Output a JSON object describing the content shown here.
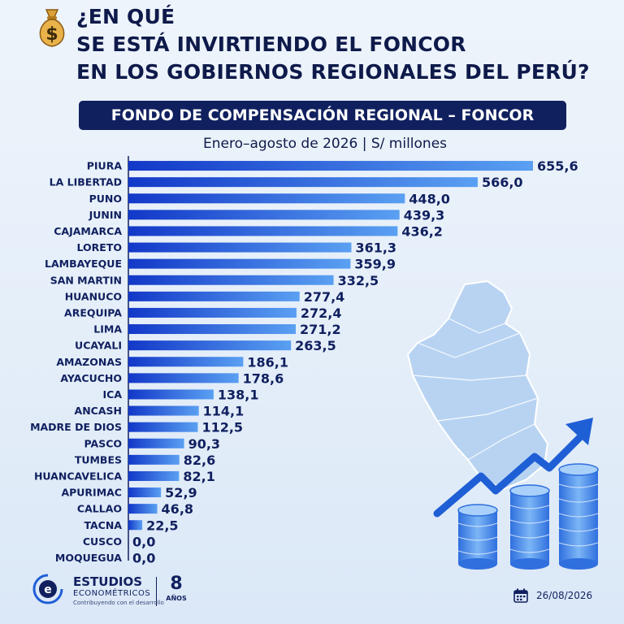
{
  "header": {
    "icon": "money-bag-icon",
    "title_lines": [
      "¿EN QUÉ",
      "SE ESTÁ INVIRTIENDO EL FONCOR",
      "EN LOS GOBIERNOS REGIONALES DEL PERÚ?"
    ]
  },
  "banner": {
    "text": "FONDO DE COMPENSACIÓN REGIONAL – FONCOR"
  },
  "colors": {
    "bar_dark": "#1238c8",
    "bar_light": "#5aa0f2",
    "navy": "#10205f"
  },
  "chart_data": {
    "type": "bar",
    "orientation": "horizontal",
    "title": "Enero–agosto de 2026 | S/ millones",
    "categories": [
      "PIURA",
      "LA LIBERTAD",
      "PUNO",
      "JUNIN",
      "CAJAMARCA",
      "LORETO",
      "LAMBAYEQUE",
      "SAN MARTIN",
      "HUANUCO",
      "AREQUIPA",
      "LIMA",
      "UCAYALI",
      "AMAZONAS",
      "AYACUCHO",
      "ICA",
      "ANCASH",
      "MADRE DE DIOS",
      "PASCO",
      "TUMBES",
      "HUANCAVELICA",
      "APURIMAC",
      "CALLAO",
      "TACNA",
      "CUSCO",
      "MOQUEGUA"
    ],
    "values": [
      655.6,
      566.0,
      448.0,
      439.3,
      436.2,
      361.3,
      359.9,
      332.5,
      277.4,
      272.4,
      271.2,
      263.5,
      186.1,
      178.6,
      138.1,
      114.1,
      112.5,
      90.3,
      82.6,
      82.1,
      52.9,
      46.8,
      22.5,
      0.0,
      0.0
    ],
    "value_labels": [
      "655,6",
      "566,0",
      "448,0",
      "439,3",
      "436,2",
      "361,3",
      "359,9",
      "332,5",
      "277,4",
      "272,4",
      "271,2",
      "263,5",
      "186,1",
      "178,6",
      "138,1",
      "114,1",
      "112,5",
      "90,3",
      "82,6",
      "82,1",
      "52,9",
      "46,8",
      "22,5",
      "0,0",
      "0,0"
    ],
    "xlim": [
      0,
      655.6
    ],
    "grid": false,
    "legend": "none"
  },
  "footer": {
    "logo_icon": "estudios-econometricos-logo-icon",
    "brand_name": "ESTUDIOS",
    "brand_sub": "ECONOMÉTRICOS",
    "brand_tagline": "Contribuyendo con el desarrollo",
    "years_number": "8",
    "years_label": "AÑOS",
    "calendar_icon": "calendar-icon",
    "date": "26/08/2026"
  }
}
